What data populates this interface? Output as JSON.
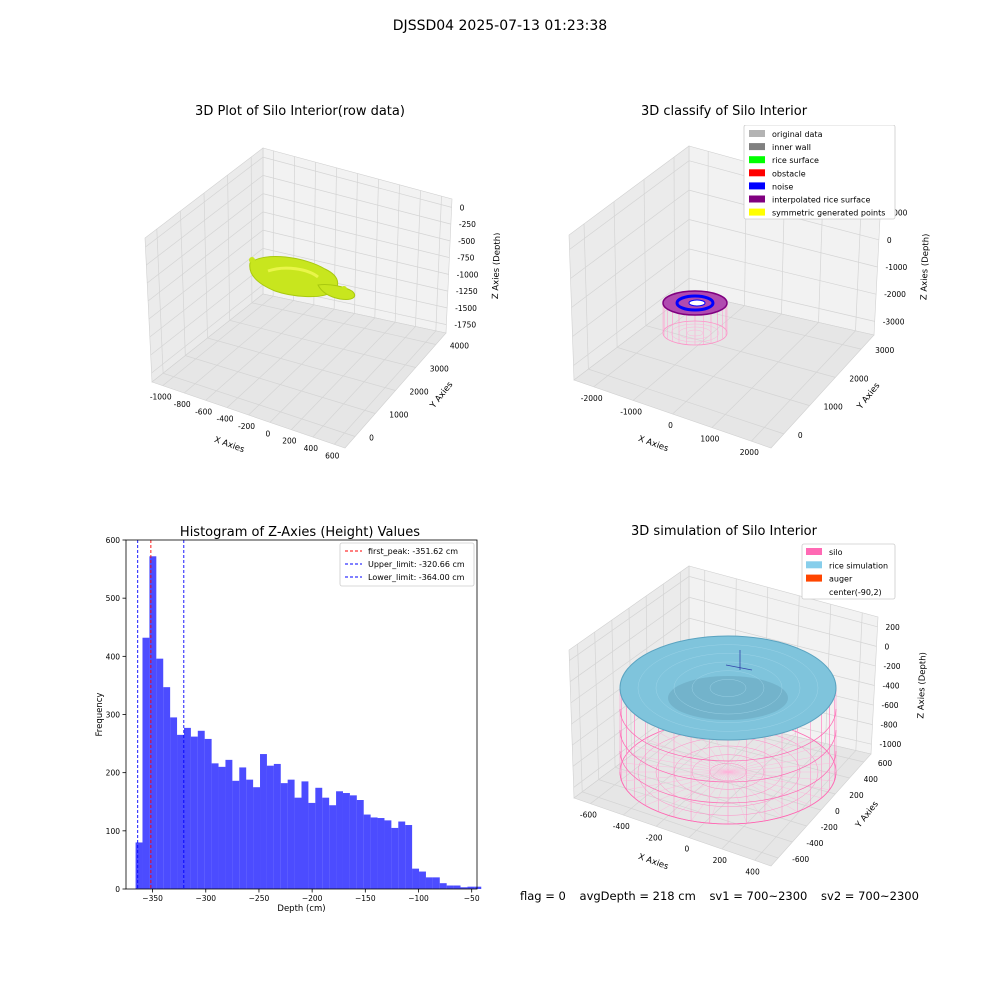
{
  "suptitle": "DJSSD04 2025-07-13 01:23:38",
  "panels": {
    "raw": {
      "title": "3D Plot of Silo Interior(row data)",
      "xlabel": "X Axies",
      "ylabel": "Y Axies",
      "zlabel": "Z Axies (Depth)",
      "xticks": [
        "-1000",
        "-800",
        "-600",
        "-400",
        "-200",
        "0",
        "200",
        "400",
        "600"
      ],
      "yticks": [
        "0",
        "1000",
        "2000",
        "3000",
        "4000"
      ],
      "zticks": [
        "0",
        "-250",
        "-500",
        "-750",
        "-1000",
        "-1250",
        "-1500",
        "-1750"
      ],
      "point_color": "#c8e61e"
    },
    "classify": {
      "title": "3D classify of Silo Interior",
      "xlabel": "X Axies",
      "ylabel": "Y Axies",
      "zlabel": "Z Axies (Depth)",
      "xticks": [
        "-2000",
        "-1000",
        "0",
        "1000",
        "2000"
      ],
      "yticks": [
        "0",
        "1000",
        "2000",
        "3000"
      ],
      "zticks": [
        "1000",
        "0",
        "-1000",
        "-2000",
        "-3000"
      ],
      "legend": [
        {
          "label": "original data",
          "color": "#b3b3b3"
        },
        {
          "label": "inner wall",
          "color": "#808080"
        },
        {
          "label": "rice surface",
          "color": "#00ff00"
        },
        {
          "label": "obstacle",
          "color": "#ff0000"
        },
        {
          "label": "noise",
          "color": "#0000ff"
        },
        {
          "label": "interpolated rice surface",
          "color": "#800080"
        },
        {
          "label": "symmetric generated points",
          "color": "#ffff00"
        }
      ]
    },
    "simulation": {
      "title": "3D simulation of Silo Interior",
      "xlabel": "X Axies",
      "ylabel": "Y Axies",
      "zlabel": "Z Axies (Depth)",
      "xticks": [
        "-600",
        "-400",
        "-200",
        "0",
        "200",
        "400"
      ],
      "yticks": [
        "-600",
        "-400",
        "-200",
        "0",
        "200",
        "400",
        "600"
      ],
      "zticks": [
        "200",
        "0",
        "-200",
        "-400",
        "-600",
        "-800",
        "-1000"
      ],
      "legend": [
        {
          "label": "silo",
          "color": "#ff69b4"
        },
        {
          "label": "rice simulation",
          "color": "#87ceeb"
        },
        {
          "label": "auger",
          "color": "#ff4500"
        },
        {
          "label": "center(-90,2)",
          "color": ""
        }
      ]
    }
  },
  "chart_data": {
    "type": "bar",
    "title": "Histogram of Z-Axies (Height) Values",
    "xlabel": "Depth (cm)",
    "ylabel": "Frequency",
    "xlim": [
      -375,
      -45
    ],
    "ylim": [
      0,
      600
    ],
    "xticks": [
      -350,
      -300,
      -250,
      -200,
      -150,
      -100,
      -50
    ],
    "yticks": [
      0,
      100,
      200,
      300,
      400,
      500,
      600
    ],
    "bar_color": "#0000ff",
    "bin_width": 6.5,
    "bin_edges_start": -366,
    "values": [
      80,
      432,
      572,
      396,
      347,
      295,
      265,
      277,
      262,
      272,
      258,
      216,
      210,
      222,
      186,
      209,
      188,
      175,
      232,
      212,
      215,
      182,
      188,
      157,
      185,
      148,
      174,
      157,
      144,
      168,
      165,
      161,
      153,
      128,
      123,
      122,
      118,
      105,
      116,
      110,
      35,
      30,
      20,
      20,
      10,
      6,
      6,
      3,
      4,
      4
    ],
    "vlines": [
      {
        "label": "first_peak: -351.62 cm",
        "x": -351.62,
        "color": "#ff0000"
      },
      {
        "label": "Upper_limit: -320.66 cm",
        "x": -320.66,
        "color": "#0000ff"
      },
      {
        "label": "Lower_limit: -364.00 cm",
        "x": -364.0,
        "color": "#0000ff"
      }
    ],
    "legend_position": "top-right"
  },
  "footer": {
    "flag": "flag = 0",
    "avg": "avgDepth = 218 cm",
    "sv1": "sv1 = 700~2300",
    "sv2": "sv2 = 700~2300"
  }
}
